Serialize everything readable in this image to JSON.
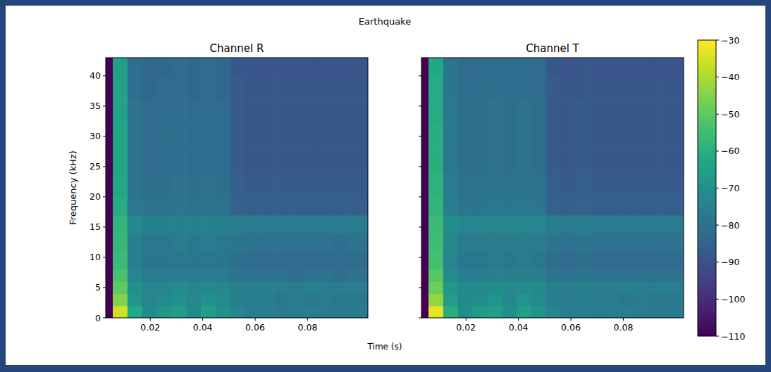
{
  "chart_data": {
    "type": "heatmap",
    "title": "Earthquake",
    "xlabel": "Time (s)",
    "ylabel": "Frequency (kHz)",
    "xlim": [
      0.003,
      0.103
    ],
    "xticks": [
      0.02,
      0.04,
      0.06,
      0.08
    ],
    "ylim": [
      0,
      43
    ],
    "yticks": [
      0,
      5,
      10,
      15,
      20,
      25,
      30,
      35,
      40
    ],
    "x_edges": [
      0.003,
      0.0057,
      0.0113,
      0.0169,
      0.0225,
      0.0281,
      0.0337,
      0.0393,
      0.0449,
      0.0505,
      0.0561,
      0.0617,
      0.0673,
      0.0729,
      0.0785,
      0.0841,
      0.0897,
      0.0953,
      0.103
    ],
    "y_edges": [
      0,
      2,
      4,
      6,
      8,
      11,
      14,
      17,
      20,
      24,
      28,
      32,
      36,
      40,
      43
    ],
    "colorbar": {
      "range": [
        -110,
        -30
      ],
      "ticks": [
        {
          "value": -30,
          "label": "−30"
        },
        {
          "value": -40,
          "label": "−40"
        },
        {
          "value": -50,
          "label": "−50"
        },
        {
          "value": -60,
          "label": "−60"
        },
        {
          "value": -70,
          "label": "−70"
        },
        {
          "value": -80,
          "label": "−80"
        },
        {
          "value": -90,
          "label": "−90"
        },
        {
          "value": -100,
          "label": "−100"
        },
        {
          "value": -110,
          "label": "−110"
        }
      ]
    },
    "panels": [
      {
        "title": "Channel R",
        "z": [
          [
            -110,
            -36,
            -62,
            -72,
            -68,
            -66,
            -72,
            -66,
            -70,
            -74,
            -76,
            -76,
            -77,
            -77,
            -76,
            -77,
            -77,
            -77
          ],
          [
            -110,
            -45,
            -68,
            -74,
            -72,
            -70,
            -74,
            -70,
            -72,
            -76,
            -77,
            -77,
            -78,
            -77,
            -78,
            -77,
            -78,
            -78
          ],
          [
            -110,
            -50,
            -70,
            -74,
            -74,
            -72,
            -74,
            -73,
            -74,
            -75,
            -76,
            -75,
            -76,
            -76,
            -75,
            -76,
            -76,
            -76
          ],
          [
            -110,
            -53,
            -74,
            -77,
            -77,
            -76,
            -77,
            -76,
            -77,
            -79,
            -80,
            -80,
            -80,
            -81,
            -80,
            -80,
            -81,
            -80
          ],
          [
            -110,
            -56,
            -76,
            -79,
            -79,
            -78,
            -79,
            -78,
            -79,
            -81,
            -82,
            -82,
            -82,
            -82,
            -82,
            -82,
            -82,
            -82
          ],
          [
            -110,
            -57,
            -75,
            -78,
            -78,
            -77,
            -78,
            -77,
            -78,
            -79,
            -80,
            -80,
            -80,
            -80,
            -80,
            -80,
            -81,
            -80
          ],
          [
            -110,
            -58,
            -73,
            -75,
            -75,
            -75,
            -75,
            -75,
            -75,
            -76,
            -77,
            -77,
            -77,
            -77,
            -77,
            -77,
            -77,
            -77
          ],
          [
            -110,
            -61,
            -78,
            -80,
            -80,
            -79,
            -80,
            -79,
            -80,
            -85,
            -86,
            -86,
            -86,
            -86,
            -86,
            -86,
            -86,
            -86
          ],
          [
            -110,
            -62,
            -79,
            -81,
            -81,
            -80,
            -81,
            -80,
            -81,
            -86,
            -87,
            -87,
            -87,
            -87,
            -87,
            -87,
            -87,
            -87
          ],
          [
            -110,
            -63,
            -80,
            -82,
            -82,
            -81,
            -82,
            -81,
            -82,
            -87,
            -88,
            -88,
            -88,
            -88,
            -88,
            -88,
            -88,
            -88
          ],
          [
            -110,
            -63,
            -80,
            -82,
            -81,
            -81,
            -82,
            -81,
            -82,
            -87,
            -88,
            -88,
            -88,
            -88,
            -88,
            -88,
            -88,
            -88
          ],
          [
            -110,
            -64,
            -80,
            -82,
            -82,
            -81,
            -82,
            -81,
            -82,
            -87,
            -88,
            -88,
            -88,
            -88,
            -88,
            -88,
            -88,
            -88
          ],
          [
            -110,
            -64,
            -81,
            -83,
            -82,
            -82,
            -83,
            -82,
            -83,
            -87,
            -88,
            -88,
            -88,
            -88,
            -88,
            -88,
            -88,
            -88
          ],
          [
            -110,
            -65,
            -81,
            -83,
            -83,
            -82,
            -83,
            -82,
            -83,
            -88,
            -89,
            -89,
            -89,
            -89,
            -89,
            -89,
            -89,
            -89
          ]
        ]
      },
      {
        "title": "Channel T",
        "z": [
          [
            -110,
            -33,
            -60,
            -71,
            -67,
            -65,
            -71,
            -65,
            -69,
            -74,
            -76,
            -76,
            -77,
            -76,
            -76,
            -77,
            -77,
            -77
          ],
          [
            -110,
            -43,
            -66,
            -73,
            -71,
            -69,
            -73,
            -69,
            -72,
            -76,
            -77,
            -77,
            -77,
            -77,
            -78,
            -77,
            -78,
            -78
          ],
          [
            -110,
            -48,
            -68,
            -73,
            -73,
            -71,
            -73,
            -72,
            -73,
            -75,
            -76,
            -75,
            -76,
            -76,
            -75,
            -76,
            -76,
            -76
          ],
          [
            -110,
            -51,
            -72,
            -76,
            -76,
            -75,
            -76,
            -75,
            -76,
            -79,
            -80,
            -79,
            -80,
            -80,
            -80,
            -80,
            -80,
            -80
          ],
          [
            -110,
            -54,
            -74,
            -78,
            -78,
            -77,
            -78,
            -77,
            -78,
            -81,
            -82,
            -81,
            -82,
            -82,
            -82,
            -82,
            -82,
            -82
          ],
          [
            -110,
            -55,
            -73,
            -77,
            -77,
            -76,
            -77,
            -76,
            -77,
            -79,
            -80,
            -79,
            -80,
            -80,
            -80,
            -80,
            -80,
            -80
          ],
          [
            -110,
            -56,
            -71,
            -74,
            -74,
            -74,
            -74,
            -74,
            -74,
            -76,
            -77,
            -76,
            -77,
            -77,
            -77,
            -77,
            -77,
            -77
          ],
          [
            -110,
            -58,
            -76,
            -79,
            -79,
            -78,
            -79,
            -78,
            -79,
            -85,
            -86,
            -85,
            -86,
            -86,
            -86,
            -86,
            -86,
            -86
          ],
          [
            -110,
            -59,
            -77,
            -80,
            -80,
            -79,
            -80,
            -79,
            -80,
            -86,
            -87,
            -86,
            -87,
            -87,
            -87,
            -87,
            -87,
            -87
          ],
          [
            -110,
            -60,
            -78,
            -81,
            -81,
            -80,
            -81,
            -80,
            -81,
            -87,
            -88,
            -87,
            -88,
            -88,
            -88,
            -88,
            -88,
            -88
          ],
          [
            -110,
            -60,
            -78,
            -81,
            -81,
            -80,
            -81,
            -80,
            -81,
            -87,
            -88,
            -87,
            -88,
            -88,
            -88,
            -88,
            -88,
            -88
          ],
          [
            -110,
            -61,
            -78,
            -81,
            -81,
            -80,
            -81,
            -80,
            -81,
            -87,
            -88,
            -87,
            -88,
            -88,
            -88,
            -88,
            -88,
            -88
          ],
          [
            -110,
            -61,
            -79,
            -82,
            -81,
            -81,
            -82,
            -81,
            -82,
            -87,
            -88,
            -88,
            -88,
            -88,
            -88,
            -88,
            -88,
            -88
          ],
          [
            -110,
            -62,
            -79,
            -82,
            -82,
            -81,
            -82,
            -81,
            -82,
            -88,
            -89,
            -88,
            -89,
            -89,
            -89,
            -89,
            -89,
            -89
          ]
        ]
      }
    ]
  }
}
